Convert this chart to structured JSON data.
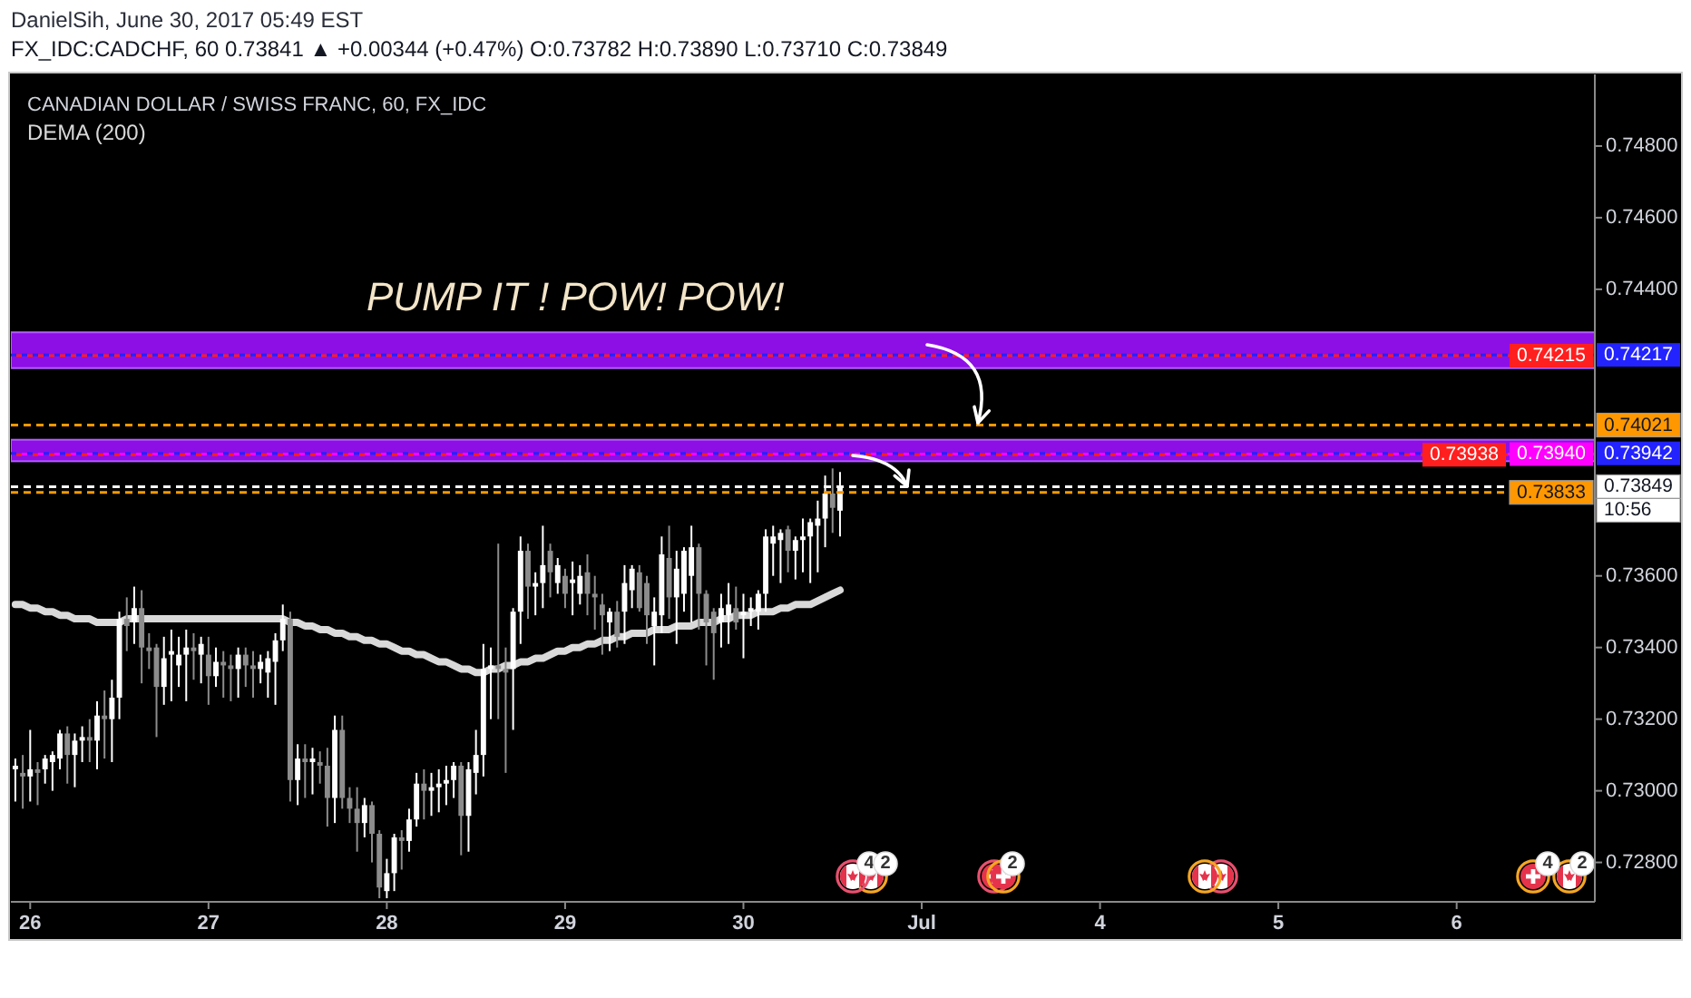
{
  "chart_data": {
    "type": "candlestick",
    "title": "CANADIAN DOLLAR / SWISS FRANC, 60, FX_IDC",
    "subtitle": "FX_IDC:CADCHF, 60  0.73841 ▲ +0.00344 (+0.47%) O:0.73782 H:0.73890 L:0.73710 C:0.73849",
    "categories": [
      null,
      null,
      "26",
      null,
      null,
      null,
      null,
      null,
      null,
      null,
      null,
      null,
      null,
      null,
      null,
      null,
      null,
      null,
      null,
      null,
      null,
      null,
      null,
      null,
      null,
      null,
      "27",
      null,
      null,
      null,
      null,
      null,
      null,
      null,
      null,
      null,
      null,
      null,
      null,
      null,
      null,
      null,
      null,
      null,
      null,
      null,
      null,
      null,
      null,
      null,
      "28",
      null,
      null,
      null,
      null,
      null,
      null,
      null,
      null,
      null,
      null,
      null,
      null,
      null,
      null,
      null,
      null,
      null,
      null,
      null,
      null,
      null,
      null,
      null,
      "29",
      null,
      null,
      null,
      null,
      null,
      null,
      null,
      null,
      null,
      null,
      null,
      null,
      null,
      null,
      null,
      null,
      null,
      null,
      null,
      null,
      null,
      null,
      null,
      "30",
      null,
      null,
      null,
      null,
      null,
      null,
      null,
      null,
      null,
      null,
      null,
      null,
      null,
      null,
      null,
      null,
      null,
      null,
      null,
      null,
      null,
      null,
      null,
      "Jul",
      null,
      null,
      null,
      null,
      null,
      null,
      null,
      null,
      null,
      null,
      null,
      null,
      null,
      null,
      null,
      null,
      null,
      null,
      null,
      null,
      null,
      null,
      null,
      "4",
      null,
      null,
      null,
      null,
      null,
      null,
      null,
      null,
      null,
      null,
      null,
      null,
      null,
      null,
      null,
      null,
      null,
      null,
      null,
      null,
      null,
      null,
      null,
      "5",
      null,
      null,
      null,
      null,
      null,
      null,
      null,
      null,
      null,
      null,
      null,
      null,
      null,
      null,
      null,
      null,
      null,
      null,
      null,
      null,
      null,
      null,
      null,
      "6",
      null,
      null,
      null,
      null,
      null,
      null,
      null,
      null,
      null,
      null,
      null,
      null,
      null,
      null,
      null,
      null,
      null,
      null
    ],
    "ohlc": [
      [
        0.7306,
        0.7309,
        0.7297,
        0.7307
      ],
      [
        0.7305,
        0.731,
        0.7295,
        0.7304
      ],
      [
        0.7304,
        0.7317,
        0.7297,
        0.7306
      ],
      [
        0.7306,
        0.7308,
        0.7296,
        0.7305
      ],
      [
        0.7306,
        0.731,
        0.7302,
        0.7309
      ],
      [
        0.7308,
        0.7311,
        0.73,
        0.731
      ],
      [
        0.7309,
        0.7317,
        0.7306,
        0.7316
      ],
      [
        0.7316,
        0.7318,
        0.7302,
        0.731
      ],
      [
        0.731,
        0.7316,
        0.7301,
        0.7314
      ],
      [
        0.7314,
        0.7318,
        0.7308,
        0.7315
      ],
      [
        0.7315,
        0.732,
        0.7308,
        0.7314
      ],
      [
        0.7314,
        0.7325,
        0.7306,
        0.7321
      ],
      [
        0.7321,
        0.7328,
        0.7309,
        0.732
      ],
      [
        0.732,
        0.7331,
        0.7308,
        0.7326
      ],
      [
        0.7326,
        0.735,
        0.732,
        0.7348
      ],
      [
        0.7348,
        0.7354,
        0.7339,
        0.7346
      ],
      [
        0.7347,
        0.7357,
        0.7341,
        0.7351
      ],
      [
        0.7351,
        0.7356,
        0.733,
        0.734
      ],
      [
        0.734,
        0.7344,
        0.7334,
        0.7339
      ],
      [
        0.734,
        0.7341,
        0.7315,
        0.7329
      ],
      [
        0.7329,
        0.7343,
        0.7324,
        0.7337
      ],
      [
        0.7338,
        0.7345,
        0.7325,
        0.7339
      ],
      [
        0.7335,
        0.7343,
        0.7329,
        0.7338
      ],
      [
        0.7338,
        0.7345,
        0.7325,
        0.734
      ],
      [
        0.734,
        0.7344,
        0.7331,
        0.7339
      ],
      [
        0.7338,
        0.7343,
        0.733,
        0.7341
      ],
      [
        0.7338,
        0.7343,
        0.7324,
        0.7332
      ],
      [
        0.7332,
        0.734,
        0.7329,
        0.7336
      ],
      [
        0.7336,
        0.7339,
        0.7326,
        0.7335
      ],
      [
        0.7335,
        0.7338,
        0.7325,
        0.7334
      ],
      [
        0.7334,
        0.734,
        0.7326,
        0.7338
      ],
      [
        0.7338,
        0.734,
        0.7329,
        0.7335
      ],
      [
        0.7335,
        0.7339,
        0.7326,
        0.7334
      ],
      [
        0.7334,
        0.7338,
        0.733,
        0.7336
      ],
      [
        0.7333,
        0.7339,
        0.7326,
        0.7337
      ],
      [
        0.7336,
        0.7344,
        0.7324,
        0.7342
      ],
      [
        0.7342,
        0.7352,
        0.7339,
        0.7348
      ],
      [
        0.7348,
        0.735,
        0.7297,
        0.7303
      ],
      [
        0.7303,
        0.7313,
        0.7296,
        0.7309
      ],
      [
        0.7309,
        0.7313,
        0.7298,
        0.7308
      ],
      [
        0.7308,
        0.7312,
        0.7299,
        0.7309
      ],
      [
        0.7308,
        0.7311,
        0.7302,
        0.7307
      ],
      [
        0.7307,
        0.7312,
        0.729,
        0.7298
      ],
      [
        0.7298,
        0.7321,
        0.7291,
        0.7317
      ],
      [
        0.7317,
        0.7321,
        0.7295,
        0.7298
      ],
      [
        0.7298,
        0.7301,
        0.7291,
        0.7295
      ],
      [
        0.7295,
        0.7301,
        0.7283,
        0.7291
      ],
      [
        0.7291,
        0.7298,
        0.7287,
        0.7296
      ],
      [
        0.7296,
        0.7297,
        0.728,
        0.7288
      ],
      [
        0.7288,
        0.7289,
        0.727,
        0.7273
      ],
      [
        0.7272,
        0.7281,
        0.727,
        0.7277
      ],
      [
        0.7277,
        0.7288,
        0.7272,
        0.7287
      ],
      [
        0.7287,
        0.7289,
        0.7278,
        0.7286
      ],
      [
        0.7286,
        0.7295,
        0.7283,
        0.7292
      ],
      [
        0.7292,
        0.7305,
        0.729,
        0.7302
      ],
      [
        0.7302,
        0.7306,
        0.7292,
        0.73
      ],
      [
        0.73,
        0.7305,
        0.7293,
        0.7301
      ],
      [
        0.7301,
        0.7306,
        0.7294,
        0.7302
      ],
      [
        0.7302,
        0.7307,
        0.7296,
        0.7303
      ],
      [
        0.7303,
        0.7308,
        0.7298,
        0.7307
      ],
      [
        0.7307,
        0.7308,
        0.7282,
        0.7293
      ],
      [
        0.7293,
        0.7308,
        0.7283,
        0.7306
      ],
      [
        0.7305,
        0.7317,
        0.7299,
        0.731
      ],
      [
        0.731,
        0.7341,
        0.7304,
        0.7334
      ],
      [
        0.7334,
        0.734,
        0.732,
        0.7335
      ],
      [
        0.7335,
        0.7369,
        0.732,
        0.7334
      ],
      [
        0.7334,
        0.734,
        0.7305,
        0.7333
      ],
      [
        0.7334,
        0.7351,
        0.7317,
        0.735
      ],
      [
        0.735,
        0.7371,
        0.7341,
        0.7367
      ],
      [
        0.7367,
        0.7369,
        0.7348,
        0.7357
      ],
      [
        0.7357,
        0.7361,
        0.7349,
        0.7358
      ],
      [
        0.7358,
        0.7374,
        0.7351,
        0.7363
      ],
      [
        0.7367,
        0.7369,
        0.7354,
        0.7361
      ],
      [
        0.7358,
        0.7365,
        0.7355,
        0.7363
      ],
      [
        0.736,
        0.7362,
        0.7351,
        0.7355
      ],
      [
        0.7358,
        0.7364,
        0.7349,
        0.7359
      ],
      [
        0.7355,
        0.7363,
        0.7352,
        0.736
      ],
      [
        0.7361,
        0.7366,
        0.7349,
        0.7355
      ],
      [
        0.7355,
        0.736,
        0.7345,
        0.7354
      ],
      [
        0.7352,
        0.7355,
        0.7338,
        0.7349
      ],
      [
        0.7347,
        0.7351,
        0.7339,
        0.735
      ],
      [
        0.735,
        0.7353,
        0.734,
        0.7343
      ],
      [
        0.735,
        0.7363,
        0.7341,
        0.7358
      ],
      [
        0.7356,
        0.7363,
        0.7351,
        0.7362
      ],
      [
        0.7361,
        0.7363,
        0.735,
        0.7351
      ],
      [
        0.7358,
        0.736,
        0.7341,
        0.7349
      ],
      [
        0.7346,
        0.7354,
        0.7335,
        0.735
      ],
      [
        0.7349,
        0.7371,
        0.7344,
        0.7366
      ],
      [
        0.7365,
        0.7374,
        0.7348,
        0.7354
      ],
      [
        0.7354,
        0.7367,
        0.7341,
        0.7362
      ],
      [
        0.7355,
        0.7368,
        0.735,
        0.7367
      ],
      [
        0.736,
        0.7374,
        0.7347,
        0.7368
      ],
      [
        0.7368,
        0.7369,
        0.7345,
        0.7355
      ],
      [
        0.7355,
        0.7356,
        0.7335,
        0.7347
      ],
      [
        0.735,
        0.7351,
        0.7331,
        0.7344
      ],
      [
        0.7347,
        0.7355,
        0.734,
        0.7351
      ],
      [
        0.7349,
        0.7358,
        0.7341,
        0.7352
      ],
      [
        0.7351,
        0.7357,
        0.7345,
        0.7347
      ],
      [
        0.7349,
        0.7355,
        0.7337,
        0.735
      ],
      [
        0.735,
        0.7354,
        0.7346,
        0.7351
      ],
      [
        0.735,
        0.7356,
        0.7345,
        0.7355
      ],
      [
        0.7355,
        0.7373,
        0.735,
        0.7371
      ],
      [
        0.7369,
        0.7374,
        0.736,
        0.7371
      ],
      [
        0.737,
        0.7373,
        0.7358,
        0.7372
      ],
      [
        0.7373,
        0.7374,
        0.7361,
        0.7367
      ],
      [
        0.7367,
        0.7371,
        0.7359,
        0.737
      ],
      [
        0.737,
        0.7376,
        0.7361,
        0.7371
      ],
      [
        0.7371,
        0.7376,
        0.7358,
        0.7375
      ],
      [
        0.7374,
        0.7381,
        0.7361,
        0.7376
      ],
      [
        0.7376,
        0.7388,
        0.7368,
        0.7383
      ],
      [
        0.7383,
        0.739,
        0.7372,
        0.7379
      ],
      [
        0.73782,
        0.7389,
        0.7371,
        0.73849
      ],
      null,
      null,
      null,
      null,
      null,
      null,
      null,
      null,
      null,
      null,
      null,
      null,
      null,
      null,
      null,
      null,
      null,
      null,
      null,
      null,
      null,
      null,
      null,
      null,
      null,
      null,
      null,
      null,
      null,
      null,
      null,
      null,
      null,
      null,
      null,
      null,
      null,
      null,
      null,
      null,
      null,
      null,
      null,
      null,
      null,
      null,
      null,
      null,
      null,
      null,
      null,
      null,
      null,
      null,
      null,
      null,
      null,
      null,
      null,
      null,
      null,
      null,
      null,
      null,
      null,
      null,
      null,
      null,
      null,
      null,
      null,
      null,
      null,
      null,
      null,
      null,
      null,
      null,
      null,
      null,
      null,
      null,
      null,
      null,
      null,
      null,
      null,
      null,
      null,
      null,
      null,
      null,
      null,
      null,
      null,
      null,
      null,
      null,
      null,
      null,
      null
    ],
    "series": [
      {
        "type": "line",
        "name": "DEMA (200)",
        "color": "#d9d9d9",
        "values": [
          0.7352,
          0.7352,
          0.7351,
          0.7351,
          0.735,
          0.735,
          0.7349,
          0.7349,
          0.7348,
          0.7348,
          0.7348,
          0.7347,
          0.7347,
          0.7347,
          0.7347,
          0.7348,
          0.7348,
          0.7348,
          0.7348,
          0.7348,
          0.7348,
          0.7348,
          0.7348,
          0.7348,
          0.7348,
          0.7348,
          0.7348,
          0.7348,
          0.7348,
          0.7348,
          0.7348,
          0.7348,
          0.7348,
          0.7348,
          0.7348,
          0.7348,
          0.7348,
          0.7347,
          0.7347,
          0.7346,
          0.7346,
          0.7345,
          0.7345,
          0.7344,
          0.7344,
          0.7343,
          0.7343,
          0.7342,
          0.7342,
          0.7341,
          0.7341,
          0.734,
          0.7339,
          0.7339,
          0.7338,
          0.7338,
          0.7337,
          0.7336,
          0.7336,
          0.7335,
          0.7334,
          0.7334,
          0.7333,
          0.7333,
          0.7334,
          0.7334,
          0.7335,
          0.7335,
          0.7336,
          0.7336,
          0.7337,
          0.7337,
          0.7338,
          0.7339,
          0.7339,
          0.734,
          0.734,
          0.7341,
          0.7341,
          0.7342,
          0.7342,
          0.7343,
          0.7343,
          0.7344,
          0.7344,
          0.7344,
          0.7345,
          0.7345,
          0.7345,
          0.7346,
          0.7346,
          0.7346,
          0.7347,
          0.7347,
          0.7347,
          0.7348,
          0.7348,
          0.7349,
          0.7349,
          0.7349,
          0.735,
          0.735,
          0.735,
          0.7351,
          0.7351,
          0.7352,
          0.7352,
          0.7352,
          0.7353,
          0.7354,
          0.7355,
          0.7356,
          null,
          null,
          null,
          null,
          null,
          null,
          null,
          null,
          null,
          null,
          null,
          null,
          null,
          null,
          null,
          null,
          null,
          null,
          null,
          null,
          null,
          null,
          null,
          null,
          null,
          null,
          null,
          null,
          null,
          null,
          null,
          null,
          null,
          null,
          null,
          null,
          null,
          null,
          null,
          null,
          null,
          null,
          null,
          null,
          null,
          null,
          null,
          null,
          null,
          null,
          null,
          null,
          null,
          null,
          null,
          null,
          null,
          null,
          null,
          null,
          null,
          null,
          null,
          null,
          null,
          null,
          null,
          null,
          null,
          null,
          null,
          null,
          null,
          null,
          null,
          null,
          null,
          null,
          null,
          null,
          null,
          null,
          null,
          null,
          null,
          null,
          null,
          null,
          null,
          null,
          null,
          null,
          null,
          null,
          null,
          null,
          null,
          null,
          null,
          null,
          null
        ]
      }
    ],
    "ylim": [
      0.7269,
      0.75
    ],
    "yticks": [
      {
        "value": 0.728,
        "label": "0.72800"
      },
      {
        "value": 0.73,
        "label": "0.73000"
      },
      {
        "value": 0.732,
        "label": "0.73200"
      },
      {
        "value": 0.734,
        "label": "0.73400"
      },
      {
        "value": 0.736,
        "label": "0.73600"
      },
      {
        "value": 0.744,
        "label": "0.74400"
      },
      {
        "value": 0.746,
        "label": "0.74600"
      },
      {
        "value": 0.748,
        "label": "0.74800"
      }
    ],
    "bands": [
      {
        "axis": "y",
        "from": 0.7418,
        "to": 0.7428,
        "color": "#8e0ee6"
      },
      {
        "axis": "y",
        "from": 0.7392,
        "to": 0.7398,
        "color": "#8e0ee6"
      }
    ],
    "ref_lines": [
      {
        "axis": "y",
        "value": 0.74217,
        "label": "0.74217",
        "color": "#2323ff",
        "line_style": "dashed"
      },
      {
        "axis": "y",
        "value": 0.74215,
        "label": "0.74215",
        "color": "#ff1f1f",
        "line_style": "dashed"
      },
      {
        "axis": "y",
        "value": 0.74021,
        "label": "0.74021",
        "color": "#ff9800",
        "line_style": "dashed"
      },
      {
        "axis": "y",
        "value": 0.73942,
        "label": "0.73942",
        "color": "#2323ff",
        "line_style": "dashed"
      },
      {
        "axis": "y",
        "value": 0.7394,
        "label": "0.73940",
        "color": "#ff00ff",
        "line_style": "dashed"
      },
      {
        "axis": "y",
        "value": 0.73938,
        "label": "0.73938",
        "color": "#ff1f1f",
        "line_style": "dashed"
      },
      {
        "axis": "y",
        "value": 0.73849,
        "label": "0.73849",
        "color": "#ffffff",
        "line_style": "dashed"
      },
      {
        "axis": "y",
        "value": 0.73833,
        "label": "0.73833",
        "color": "#ff9800",
        "line_style": "dashed"
      }
    ],
    "annotations": [
      "DanielSih, June 30, 2017 05:49 EST",
      "PUMP IT ! POW! POW!",
      "10:56",
      "4",
      "2",
      "2",
      "4",
      "2"
    ],
    "legend": "top left"
  }
}
